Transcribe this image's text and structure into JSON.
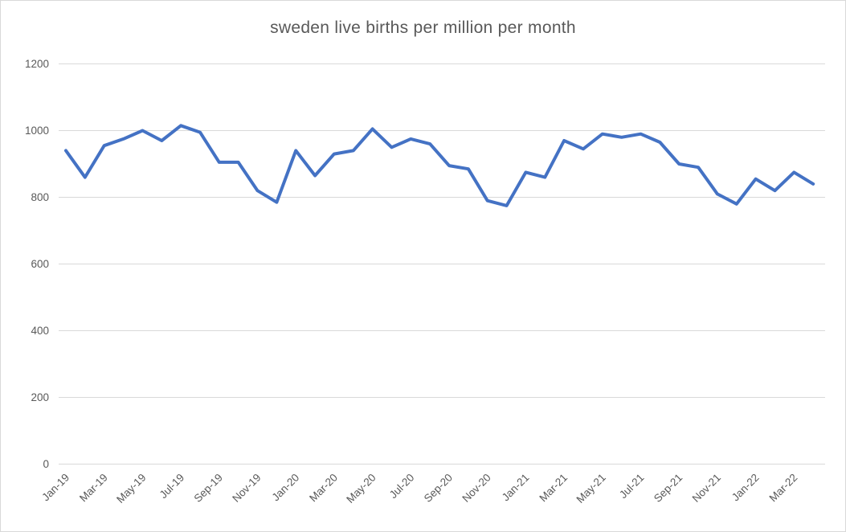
{
  "title": "sweden live births per million per month",
  "chart_data": {
    "type": "line",
    "title": "sweden live births per million per month",
    "x": [
      "Jan-19",
      "Feb-19",
      "Mar-19",
      "Apr-19",
      "May-19",
      "Jun-19",
      "Jul-19",
      "Aug-19",
      "Sep-19",
      "Oct-19",
      "Nov-19",
      "Dec-19",
      "Jan-20",
      "Feb-20",
      "Mar-20",
      "Apr-20",
      "May-20",
      "Jun-20",
      "Jul-20",
      "Aug-20",
      "Sep-20",
      "Oct-20",
      "Nov-20",
      "Dec-20",
      "Jan-21",
      "Feb-21",
      "Mar-21",
      "Apr-21",
      "May-21",
      "Jun-21",
      "Jul-21",
      "Aug-21",
      "Sep-21",
      "Oct-21",
      "Nov-21",
      "Dec-21",
      "Jan-22",
      "Feb-22",
      "Mar-22",
      "Apr-22"
    ],
    "values": [
      940,
      860,
      955,
      975,
      1000,
      970,
      1015,
      995,
      905,
      905,
      820,
      785,
      940,
      865,
      930,
      940,
      1005,
      950,
      975,
      960,
      895,
      885,
      790,
      775,
      875,
      860,
      970,
      945,
      990,
      980,
      990,
      965,
      900,
      890,
      810,
      780,
      855,
      820,
      875,
      840
    ],
    "x_tick_labels": [
      "Jan-19",
      "Mar-19",
      "May-19",
      "Jul-19",
      "Sep-19",
      "Nov-19",
      "Jan-20",
      "Mar-20",
      "May-20",
      "Jul-20",
      "Sep-20",
      "Nov-20",
      "Jan-21",
      "Mar-21",
      "May-21",
      "Jul-21",
      "Sep-21",
      "Nov-21",
      "Jan-22",
      "Mar-22"
    ],
    "y_ticks": [
      0,
      200,
      400,
      600,
      800,
      1000,
      1200
    ],
    "ylim": [
      0,
      1200
    ],
    "xlabel": "",
    "ylabel": "",
    "grid": "horizontal",
    "legend": "none",
    "line_color": "#4472C4",
    "gridline_color": "#D9D9D9",
    "text_color": "#595959"
  }
}
